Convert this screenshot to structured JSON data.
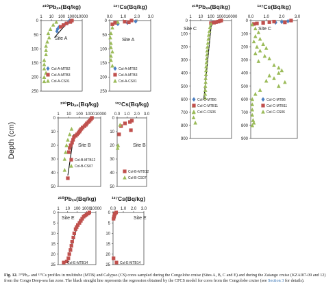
{
  "figure": {
    "ylabel": "Depth (cm)",
    "caption": {
      "prefix": "Fig. 12.",
      "text": " ²¹⁰Pbₓₛ and ¹³⁷Cs profiles in multitube (MTB) and Calypso (CS) cores sampled during the Congolobe cruise (Sites A, B, C and E) and during the Zaiango cruise (KZAI07-09 and 12) from the Congo Deep-sea fan zone. The black straight line represents the regression obtained by the CFCS model for cores from the Congolobe cruise (see ",
      "link": "Section 3",
      "suffix": " for details)."
    }
  },
  "chart_data": [
    {
      "id": "A-Pb",
      "type": "scatter",
      "title": "²¹⁰Pbₓₛ(Bq/kg)",
      "site": "Site A",
      "xscale": "log",
      "xlim": [
        1,
        10000
      ],
      "xticks": [
        1,
        10,
        100,
        1000,
        10000
      ],
      "xticklabels": [
        "1",
        "10",
        "100",
        "1000",
        "10000"
      ],
      "ylim": [
        0,
        250
      ],
      "yticks": [
        0,
        50,
        100,
        150,
        200,
        250
      ],
      "series": [
        {
          "name": "Col-A-MTB2",
          "marker": "diamond",
          "color": "#4a7fc1",
          "points": [
            [
              600,
              0
            ],
            [
              900,
              3
            ],
            [
              400,
              8
            ],
            [
              200,
              14
            ],
            [
              60,
              22
            ],
            [
              40,
              30
            ],
            [
              35,
              38
            ]
          ]
        },
        {
          "name": "Col-A-MTB3",
          "marker": "square",
          "color": "#c0504d",
          "points": [
            [
              1000,
              0
            ],
            [
              700,
              5
            ],
            [
              300,
              10
            ],
            [
              150,
              16
            ],
            [
              80,
              22
            ]
          ]
        },
        {
          "name": "Col-A-CS01",
          "marker": "triangle",
          "color": "#9bbb59",
          "points": [
            [
              30,
              5
            ],
            [
              15,
              15
            ],
            [
              8,
              30
            ],
            [
              5,
              45
            ],
            [
              6,
              60
            ],
            [
              4,
              75
            ],
            [
              3,
              90
            ],
            [
              3,
              105
            ],
            [
              3,
              120
            ],
            [
              2,
              140
            ],
            [
              2,
              155
            ],
            [
              2,
              170
            ],
            [
              3,
              185
            ],
            [
              2,
              200
            ],
            [
              2,
              215
            ]
          ]
        }
      ],
      "fit": [
        [
          20,
          60
        ],
        [
          180,
          20
        ]
      ]
    },
    {
      "id": "A-Cs",
      "type": "scatter",
      "title": "¹³⁷Cs(Bq/kg)",
      "site": "Site A",
      "xscale": "linear",
      "xlim": [
        0,
        3
      ],
      "xticks": [
        0,
        1,
        2,
        3
      ],
      "xticklabels": [
        "0.0",
        "1.0",
        "2.0",
        "3.0"
      ],
      "ylim": [
        0,
        250
      ],
      "yticks": [
        0,
        50,
        100,
        150,
        200,
        250
      ],
      "series": [
        {
          "name": "Col-A-MTB2",
          "marker": "diamond",
          "color": "#4a7fc1",
          "points": [
            [
              1.9,
              3
            ],
            [
              1.3,
              8
            ],
            [
              0.6,
              12
            ]
          ]
        },
        {
          "name": "Col-A-MTB3",
          "marker": "square",
          "color": "#c0504d",
          "points": [
            [
              1.6,
              0
            ],
            [
              1.1,
              4
            ],
            [
              0.4,
              8
            ],
            [
              1.4,
              6
            ],
            [
              0.2,
              13
            ]
          ]
        },
        {
          "name": "Col-A-CS01",
          "marker": "triangle",
          "color": "#9bbb59",
          "points": [
            [
              0.6,
              5
            ],
            [
              0.2,
              25
            ],
            [
              0.1,
              45
            ],
            [
              0.05,
              60
            ],
            [
              0.1,
              80
            ],
            [
              0.1,
              95
            ],
            [
              0.2,
              110
            ],
            [
              0.1,
              125
            ],
            [
              0.1,
              140
            ],
            [
              0.2,
              160
            ]
          ]
        }
      ]
    },
    {
      "id": "B-Pb",
      "type": "scatter",
      "title": "²¹⁰Pbₓₛ(Bq/kg)",
      "site": "Site B",
      "xscale": "log",
      "xlim": [
        1,
        10000
      ],
      "xticks": [
        1,
        10,
        100,
        1000,
        10000
      ],
      "xticklabels": [
        "1",
        "10",
        "100",
        "1000",
        "10000"
      ],
      "ylim": [
        0,
        50
      ],
      "yticks": [
        0,
        10,
        20,
        30,
        40,
        50
      ],
      "series": [
        {
          "name": "Col-B-MTB12",
          "marker": "square",
          "color": "#c0504d",
          "points": [
            [
              1500,
              0
            ],
            [
              1200,
              1
            ],
            [
              900,
              2
            ],
            [
              700,
              3
            ],
            [
              500,
              4
            ],
            [
              400,
              5
            ],
            [
              300,
              6
            ],
            [
              200,
              7
            ],
            [
              150,
              8
            ],
            [
              120,
              9
            ],
            [
              100,
              10
            ],
            [
              80,
              11
            ],
            [
              60,
              12
            ],
            [
              45,
              13
            ],
            [
              30,
              14
            ],
            [
              25,
              16
            ],
            [
              20,
              18
            ],
            [
              15,
              20
            ],
            [
              12,
              22
            ],
            [
              10,
              25
            ],
            [
              8,
              44
            ]
          ]
        },
        {
          "name": "Col-B-CS07",
          "marker": "triangle",
          "color": "#9bbb59",
          "points": [
            [
              18,
              8
            ],
            [
              12,
              12
            ],
            [
              8,
              16
            ],
            [
              6,
              20
            ],
            [
              5,
              25
            ],
            [
              4,
              30
            ],
            [
              4,
              38
            ]
          ]
        }
      ],
      "fit": [
        [
          8,
          42
        ],
        [
          30,
          12
        ]
      ]
    },
    {
      "id": "B-Cs",
      "type": "scatter",
      "title": "¹³⁷Cs(Bq/kg)",
      "site": "Site B",
      "xscale": "linear",
      "xlim": [
        0,
        3
      ],
      "xticks": [
        0,
        1,
        2,
        3
      ],
      "xticklabels": [
        "0.0",
        "1.0",
        "2.0",
        "3.0"
      ],
      "ylim": [
        0,
        50
      ],
      "yticks": [
        0,
        10,
        20,
        30,
        40,
        50
      ],
      "series": [
        {
          "name": "Col-B-MTB12",
          "marker": "square",
          "color": "#c0504d",
          "points": [
            [
              1.5,
              2
            ],
            [
              1.3,
              3
            ],
            [
              0.8,
              4
            ],
            [
              0.4,
              6
            ],
            [
              1.4,
              9
            ],
            [
              0.2,
              12
            ]
          ]
        },
        {
          "name": "Col-B-CS07",
          "marker": "triangle",
          "color": "#9bbb59",
          "points": [
            [
              0.3,
              5
            ],
            [
              0.1,
              20
            ],
            [
              0.05,
              22
            ]
          ]
        }
      ]
    },
    {
      "id": "C-Pb",
      "type": "scatter",
      "title": "²¹⁰Pbₓₛ(Bq/kg)",
      "site": "Site C",
      "xscale": "log",
      "xlim": [
        1,
        10000
      ],
      "xticks": [
        1,
        10,
        100,
        1000,
        10000
      ],
      "xticklabels": [
        "1",
        "10",
        "100",
        "1000",
        "10000"
      ],
      "ylim": [
        0,
        900
      ],
      "yticks": [
        0,
        100,
        200,
        300,
        400,
        500,
        600,
        700,
        800,
        900
      ],
      "series": [
        {
          "name": "Col-C-MTB6",
          "marker": "diamond",
          "color": "#4a7fc1",
          "points": [
            [
              800,
              2
            ],
            [
              600,
              6
            ],
            [
              400,
              10
            ],
            [
              200,
              14
            ],
            [
              120,
              18
            ]
          ]
        },
        {
          "name": "Col-C-MTB11",
          "marker": "square",
          "color": "#c0504d",
          "points": [
            [
              1000,
              0
            ],
            [
              700,
              4
            ],
            [
              500,
              8
            ],
            [
              300,
              12
            ],
            [
              200,
              16
            ],
            [
              100,
              20
            ]
          ]
        },
        {
          "name": "Col-C-CS06",
          "marker": "triangle",
          "color": "#9bbb59",
          "points": [
            [
              100,
              25
            ],
            [
              80,
              50
            ],
            [
              70,
              80
            ],
            [
              60,
              110
            ],
            [
              55,
              140
            ],
            [
              50,
              170
            ],
            [
              45,
              200
            ],
            [
              42,
              230
            ],
            [
              40,
              260
            ],
            [
              38,
              290
            ],
            [
              36,
              320
            ],
            [
              34,
              350
            ],
            [
              33,
              380
            ],
            [
              32,
              410
            ],
            [
              30,
              440
            ],
            [
              30,
              470
            ],
            [
              28,
              500
            ],
            [
              28,
              530
            ],
            [
              27,
              560
            ],
            [
              27,
              590
            ],
            [
              2,
              650
            ],
            [
              2,
              700
            ],
            [
              2,
              740
            ],
            [
              3,
              780
            ]
          ]
        }
      ],
      "fit": [
        [
          20,
          600
        ],
        [
          110,
          20
        ]
      ]
    },
    {
      "id": "C-Cs",
      "type": "scatter",
      "title": "¹³⁷Cs(Bq/kg)",
      "site": "Site C",
      "xscale": "linear",
      "xlim": [
        0,
        3
      ],
      "xticks": [
        0,
        1,
        2,
        3
      ],
      "xticklabels": [
        "0.0",
        "1.0",
        "2.0",
        "3.0"
      ],
      "ylim": [
        0,
        900
      ],
      "yticks": [
        0,
        100,
        200,
        300,
        400,
        500,
        600,
        700,
        800,
        900
      ],
      "series": [
        {
          "name": "Col-C-MTB6",
          "marker": "diamond",
          "color": "#4a7fc1",
          "points": [
            [
              2.4,
              5
            ],
            [
              2.0,
              10
            ],
            [
              1.6,
              15
            ]
          ]
        },
        {
          "name": "Col-C-MTB11",
          "marker": "square",
          "color": "#c0504d",
          "points": [
            [
              2.6,
              0
            ],
            [
              1.5,
              8
            ],
            [
              1.2,
              12
            ],
            [
              0.8,
              18
            ],
            [
              0.4,
              22
            ],
            [
              0.2,
              26
            ],
            [
              2.2,
              14
            ]
          ]
        },
        {
          "name": "Col-C-CS06",
          "marker": "triangle",
          "color": "#9bbb59",
          "points": [
            [
              0.1,
              30
            ],
            [
              0.3,
              60
            ],
            [
              0.5,
              90
            ],
            [
              0.3,
              120
            ],
            [
              0.6,
              140
            ],
            [
              0.2,
              160
            ],
            [
              0.8,
              180
            ],
            [
              0.4,
              200
            ],
            [
              1.0,
              210
            ],
            [
              0.6,
              230
            ],
            [
              0.3,
              250
            ],
            [
              0.9,
              270
            ],
            [
              1.2,
              290
            ],
            [
              0.5,
              310
            ],
            [
              1.5,
              340
            ],
            [
              1.8,
              360
            ],
            [
              2.0,
              380
            ],
            [
              1.8,
              400
            ],
            [
              1.2,
              420
            ],
            [
              1.5,
              440
            ],
            [
              1.0,
              460
            ],
            [
              2.2,
              470
            ],
            [
              1.8,
              500
            ],
            [
              0.6,
              530
            ],
            [
              0.3,
              560
            ],
            [
              0.1,
              600
            ],
            [
              0.1,
              640
            ],
            [
              0.1,
              680
            ],
            [
              0.1,
              720
            ],
            [
              0.15,
              760
            ],
            [
              0.2,
              780
            ],
            [
              0.1,
              800
            ]
          ]
        }
      ]
    },
    {
      "id": "E-Pb",
      "type": "scatter",
      "title": "²¹⁰Pbₓₛ(Bq/kg)",
      "site": "Site E",
      "xscale": "log",
      "xlim": [
        1,
        10000
      ],
      "xticks": [
        1,
        10,
        100,
        1000,
        10000
      ],
      "xticklabels": [
        "1",
        "10",
        "100",
        "1000",
        "10000"
      ],
      "ylim": [
        0,
        25
      ],
      "yticks": [
        0,
        5,
        10,
        15,
        20,
        25
      ],
      "series": [
        {
          "name": "Col-E-MTB14",
          "marker": "square",
          "color": "#c0504d",
          "points": [
            [
              2000,
              0
            ],
            [
              1500,
              0.5
            ],
            [
              1000,
              1
            ],
            [
              700,
              1.5
            ],
            [
              500,
              2
            ],
            [
              350,
              3
            ],
            [
              250,
              4
            ],
            [
              180,
              5
            ],
            [
              120,
              6
            ],
            [
              90,
              7
            ],
            [
              70,
              8
            ],
            [
              50,
              10
            ],
            [
              40,
              12
            ],
            [
              30,
              14
            ],
            [
              25,
              16
            ],
            [
              20,
              18
            ],
            [
              15,
              20
            ],
            [
              12,
              22
            ],
            [
              8,
              23.5
            ]
          ]
        }
      ],
      "fit": [
        [
          15,
          19
        ],
        [
          200,
          3
        ]
      ]
    },
    {
      "id": "E-Cs",
      "type": "scatter",
      "title": "¹³⁷Cs(Bq/kg)",
      "site": "Site E",
      "xscale": "linear",
      "xlim": [
        0,
        3
      ],
      "xticks": [
        0,
        1,
        2,
        3
      ],
      "xticklabels": [
        "0.0",
        "1.0",
        "2.0",
        "3.0"
      ],
      "ylim": [
        0,
        25
      ],
      "yticks": [
        0,
        5,
        10,
        15,
        20,
        25
      ],
      "series": [
        {
          "name": "Col-E-MTB14",
          "marker": "square",
          "color": "#c0504d",
          "points": [
            [
              0.3,
              0
            ],
            [
              0.2,
              0.5
            ],
            [
              0.15,
              1
            ],
            [
              0.1,
              2
            ],
            [
              0.05,
              3
            ],
            [
              0.05,
              22
            ]
          ]
        }
      ]
    }
  ]
}
